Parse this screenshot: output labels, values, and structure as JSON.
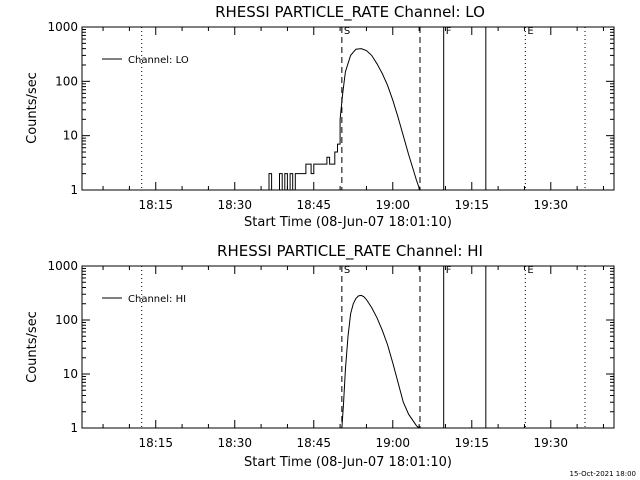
{
  "footer": "15-Oct-2021 18:00",
  "chart_data": [
    {
      "type": "line",
      "title": "RHESSI PARTICLE_RATE Channel: LO",
      "xlabel": "Start Time (08-Jun-07 18:01:10)",
      "ylabel": "Counts/sec",
      "yscale": "log",
      "ylim": [
        1,
        1000
      ],
      "xlim": [
        "18:01",
        "19:42"
      ],
      "xtick_labels": [
        "18:15",
        "18:30",
        "18:45",
        "19:00",
        "19:15",
        "19:30"
      ],
      "ytick_labels": [
        "1",
        "10",
        "100",
        "1000"
      ],
      "legend_label": "Channel: LO",
      "legend_position": "top-left",
      "series": [
        {
          "name": "Channel: LO",
          "x": [
            "18:36:00",
            "18:36:30",
            "18:37:00",
            "18:38:00",
            "18:38:30",
            "18:39:00",
            "18:39:30",
            "18:40:00",
            "18:40:30",
            "18:41:00",
            "18:41:30",
            "18:42:00",
            "18:42:30",
            "18:43:00",
            "18:43:30",
            "18:44:00",
            "18:44:30",
            "18:45:00",
            "18:45:30",
            "18:46:00",
            "18:46:30",
            "18:47:00",
            "18:47:30",
            "18:48:00",
            "18:48:30",
            "18:49:00",
            "18:49:30",
            "18:50:00",
            "18:50:30",
            "18:51:00",
            "18:52:00",
            "18:53:00",
            "18:54:00",
            "18:55:00",
            "18:56:00",
            "18:57:00",
            "18:58:00",
            "18:59:00",
            "19:00:00",
            "19:01:00",
            "19:02:00",
            "19:03:00",
            "19:04:00",
            "19:04:30",
            "19:05:00",
            "19:05:15"
          ],
          "y": [
            1,
            2,
            1,
            1,
            2,
            1,
            2,
            1,
            2,
            1,
            2,
            2,
            2,
            2,
            3,
            3,
            2,
            3,
            3,
            3,
            3,
            3,
            4,
            3,
            3,
            5,
            7,
            20,
            60,
            150,
            300,
            390,
            400,
            370,
            300,
            210,
            140,
            85,
            45,
            22,
            10,
            4.5,
            2.2,
            1.5,
            1.1,
            1
          ]
        }
      ],
      "markers": [
        {
          "label": "S",
          "x": "18:50:20",
          "style": "dashed"
        },
        {
          "label": "",
          "x": "19:05:10",
          "style": "dashed"
        },
        {
          "label": "F",
          "x": "19:09:40",
          "style": "solid"
        },
        {
          "label": "",
          "x": "19:17:40",
          "style": "solid"
        },
        {
          "label": "E",
          "x": "19:25:10",
          "style": "dotted"
        },
        {
          "label": "",
          "x": "18:12:20",
          "style": "dotted"
        },
        {
          "label": "",
          "x": "19:36:30",
          "style": "dotted"
        }
      ]
    },
    {
      "type": "line",
      "title": "RHESSI PARTICLE_RATE Channel: HI",
      "xlabel": "Start Time (08-Jun-07 18:01:10)",
      "ylabel": "Counts/sec",
      "yscale": "log",
      "ylim": [
        1,
        1000
      ],
      "xlim": [
        "18:01",
        "19:42"
      ],
      "xtick_labels": [
        "18:15",
        "18:30",
        "18:45",
        "19:00",
        "19:15",
        "19:30"
      ],
      "ytick_labels": [
        "1",
        "10",
        "100",
        "1000"
      ],
      "legend_label": "Channel: HI",
      "legend_position": "top-left",
      "series": [
        {
          "name": "Channel: HI",
          "x": [
            "18:50:20",
            "18:50:40",
            "18:51:00",
            "18:51:30",
            "18:52:00",
            "18:52:30",
            "18:53:00",
            "18:53:30",
            "18:54:00",
            "18:54:30",
            "18:55:00",
            "18:56:00",
            "18:57:00",
            "18:58:00",
            "18:59:00",
            "19:00:00",
            "19:01:00",
            "19:02:00",
            "19:03:00",
            "19:04:00",
            "19:04:30",
            "19:05:00"
          ],
          "y": [
            1,
            3,
            12,
            50,
            130,
            200,
            250,
            280,
            285,
            270,
            240,
            170,
            110,
            65,
            35,
            16,
            7,
            3,
            1.8,
            1.3,
            1.1,
            1
          ]
        }
      ],
      "markers": [
        {
          "label": "S",
          "x": "18:50:20",
          "style": "dashed"
        },
        {
          "label": "",
          "x": "19:05:10",
          "style": "dashed"
        },
        {
          "label": "F",
          "x": "19:09:40",
          "style": "solid"
        },
        {
          "label": "",
          "x": "19:17:40",
          "style": "solid"
        },
        {
          "label": "E",
          "x": "19:25:10",
          "style": "dotted"
        },
        {
          "label": "",
          "x": "18:12:20",
          "style": "dotted"
        },
        {
          "label": "",
          "x": "19:36:30",
          "style": "dotted"
        }
      ]
    }
  ]
}
